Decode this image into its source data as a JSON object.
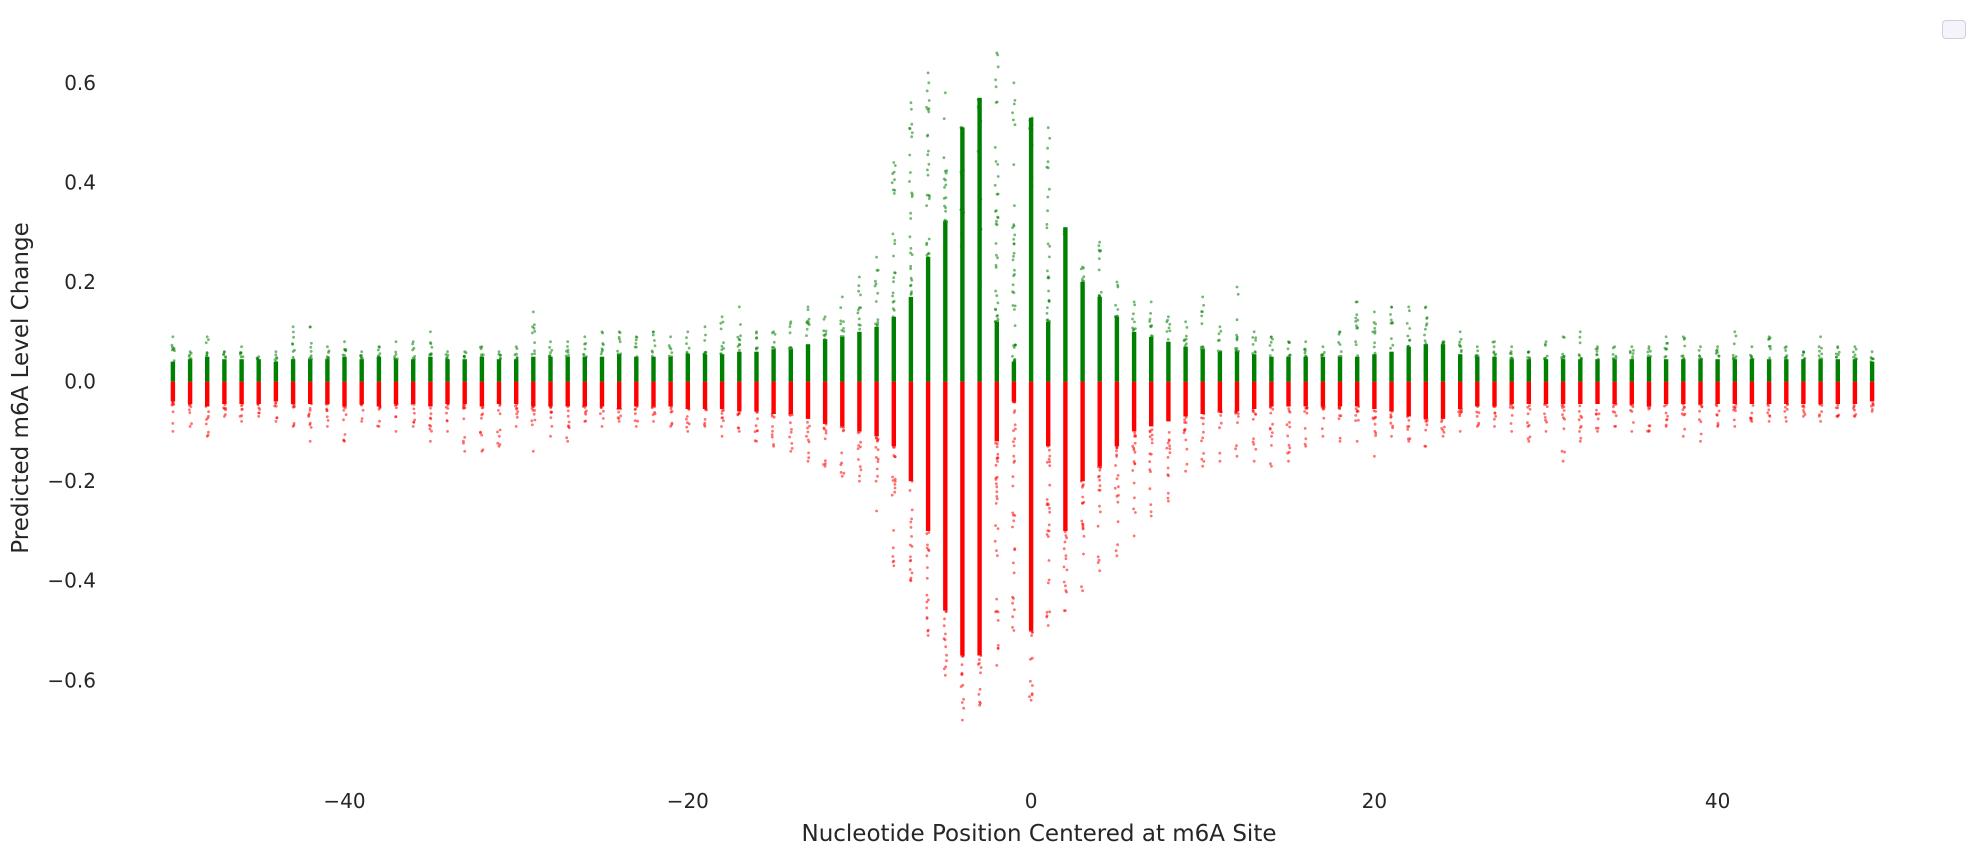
{
  "chart_data": {
    "type": "scatter",
    "title": "",
    "xlabel": "Nucleotide Position Centered at m6A Site",
    "ylabel": "Predicted m6A Level Change",
    "xlim": [
      -52.5,
      51.5
    ],
    "ylim": [
      -0.75,
      0.69
    ],
    "xticks": [
      -40,
      -20,
      0,
      20,
      40
    ],
    "yticks": [
      -0.6,
      -0.4,
      -0.2,
      0.0,
      0.2,
      0.4,
      0.6
    ],
    "xtick_labels": [
      "−40",
      "−20",
      "0",
      "20",
      "40"
    ],
    "ytick_labels": [
      "−0.6",
      "−0.4",
      "−0.2",
      "0.0",
      "0.2",
      "0.4",
      "0.6"
    ],
    "grid": false,
    "legend": "empty box at top-right",
    "colors": {
      "positive": "#008000",
      "negative": "#ff0000"
    },
    "series": [
      {
        "color_key": "positive",
        "x_range": [
          -50,
          49
        ],
        "dense_max": [
          0.04,
          0.045,
          0.05,
          0.045,
          0.045,
          0.045,
          0.04,
          0.045,
          0.045,
          0.045,
          0.05,
          0.045,
          0.05,
          0.045,
          0.045,
          0.05,
          0.045,
          0.045,
          0.05,
          0.045,
          0.045,
          0.05,
          0.05,
          0.05,
          0.05,
          0.05,
          0.055,
          0.05,
          0.05,
          0.05,
          0.055,
          0.055,
          0.055,
          0.06,
          0.06,
          0.065,
          0.065,
          0.075,
          0.085,
          0.09,
          0.1,
          0.11,
          0.13,
          0.17,
          0.25,
          0.32,
          0.51,
          0.57,
          0.12,
          0.04,
          0.53,
          0.12,
          0.31,
          0.2,
          0.17,
          0.13,
          0.1,
          0.09,
          0.08,
          0.07,
          0.065,
          0.06,
          0.06,
          0.055,
          0.05,
          0.05,
          0.05,
          0.05,
          0.05,
          0.05,
          0.055,
          0.06,
          0.07,
          0.075,
          0.075,
          0.055,
          0.05,
          0.05,
          0.045,
          0.045,
          0.045,
          0.045,
          0.045,
          0.045,
          0.045,
          0.045,
          0.05,
          0.045,
          0.045,
          0.045,
          0.045,
          0.045,
          0.045,
          0.045,
          0.045,
          0.045,
          0.045,
          0.045,
          0.045,
          0.04
        ],
        "outlier_max": [
          0.09,
          0.06,
          0.09,
          0.06,
          0.07,
          0.05,
          0.06,
          0.11,
          0.11,
          0.07,
          0.08,
          0.06,
          0.07,
          0.08,
          0.08,
          0.1,
          0.06,
          0.06,
          0.07,
          0.06,
          0.07,
          0.14,
          0.08,
          0.08,
          0.09,
          0.1,
          0.1,
          0.09,
          0.1,
          0.09,
          0.1,
          0.11,
          0.13,
          0.15,
          0.1,
          0.1,
          0.12,
          0.15,
          0.13,
          0.17,
          0.21,
          0.25,
          0.44,
          0.56,
          0.62,
          0.58,
          0.22,
          0.15,
          0.66,
          0.6,
          0.22,
          0.51,
          0.27,
          0.23,
          0.28,
          0.2,
          0.16,
          0.16,
          0.13,
          0.12,
          0.17,
          0.11,
          0.19,
          0.1,
          0.09,
          0.08,
          0.08,
          0.07,
          0.1,
          0.16,
          0.14,
          0.15,
          0.15,
          0.15,
          0.08,
          0.1,
          0.07,
          0.08,
          0.07,
          0.06,
          0.08,
          0.09,
          0.1,
          0.07,
          0.07,
          0.07,
          0.07,
          0.09,
          0.09,
          0.07,
          0.07,
          0.1,
          0.07,
          0.09,
          0.07,
          0.06,
          0.09,
          0.07,
          0.07,
          0.06
        ]
      },
      {
        "color_key": "negative",
        "x_range": [
          -50,
          49
        ],
        "dense_min": [
          -0.04,
          -0.045,
          -0.05,
          -0.045,
          -0.045,
          -0.045,
          -0.04,
          -0.045,
          -0.045,
          -0.045,
          -0.05,
          -0.045,
          -0.05,
          -0.045,
          -0.045,
          -0.05,
          -0.045,
          -0.045,
          -0.05,
          -0.045,
          -0.045,
          -0.05,
          -0.05,
          -0.05,
          -0.05,
          -0.05,
          -0.055,
          -0.05,
          -0.05,
          -0.05,
          -0.055,
          -0.055,
          -0.055,
          -0.06,
          -0.06,
          -0.065,
          -0.065,
          -0.075,
          -0.085,
          -0.09,
          -0.1,
          -0.11,
          -0.13,
          -0.2,
          -0.3,
          -0.46,
          -0.55,
          -0.55,
          -0.12,
          -0.04,
          -0.5,
          -0.13,
          -0.3,
          -0.2,
          -0.17,
          -0.13,
          -0.1,
          -0.09,
          -0.08,
          -0.07,
          -0.065,
          -0.06,
          -0.06,
          -0.055,
          -0.05,
          -0.05,
          -0.05,
          -0.05,
          -0.05,
          -0.05,
          -0.055,
          -0.06,
          -0.07,
          -0.075,
          -0.075,
          -0.055,
          -0.05,
          -0.05,
          -0.045,
          -0.045,
          -0.045,
          -0.045,
          -0.045,
          -0.045,
          -0.045,
          -0.045,
          -0.05,
          -0.045,
          -0.045,
          -0.045,
          -0.045,
          -0.045,
          -0.045,
          -0.045,
          -0.045,
          -0.045,
          -0.045,
          -0.045,
          -0.045,
          -0.04
        ],
        "outlier_min": [
          -0.1,
          -0.09,
          -0.11,
          -0.07,
          -0.08,
          -0.07,
          -0.08,
          -0.09,
          -0.12,
          -0.09,
          -0.12,
          -0.08,
          -0.09,
          -0.1,
          -0.09,
          -0.12,
          -0.1,
          -0.14,
          -0.14,
          -0.13,
          -0.09,
          -0.14,
          -0.11,
          -0.12,
          -0.08,
          -0.09,
          -0.08,
          -0.09,
          -0.08,
          -0.09,
          -0.1,
          -0.09,
          -0.11,
          -0.1,
          -0.12,
          -0.13,
          -0.14,
          -0.16,
          -0.17,
          -0.19,
          -0.2,
          -0.26,
          -0.37,
          -0.4,
          -0.51,
          -0.59,
          -0.68,
          -0.65,
          -0.57,
          -0.5,
          -0.64,
          -0.49,
          -0.46,
          -0.42,
          -0.38,
          -0.35,
          -0.31,
          -0.27,
          -0.24,
          -0.18,
          -0.17,
          -0.16,
          -0.15,
          -0.16,
          -0.17,
          -0.16,
          -0.13,
          -0.11,
          -0.12,
          -0.12,
          -0.15,
          -0.11,
          -0.12,
          -0.13,
          -0.11,
          -0.1,
          -0.09,
          -0.09,
          -0.1,
          -0.12,
          -0.1,
          -0.16,
          -0.12,
          -0.1,
          -0.09,
          -0.1,
          -0.1,
          -0.09,
          -0.11,
          -0.12,
          -0.09,
          -0.09,
          -0.08,
          -0.08,
          -0.08,
          -0.07,
          -0.08,
          -0.07,
          -0.07,
          -0.06
        ]
      }
    ]
  }
}
